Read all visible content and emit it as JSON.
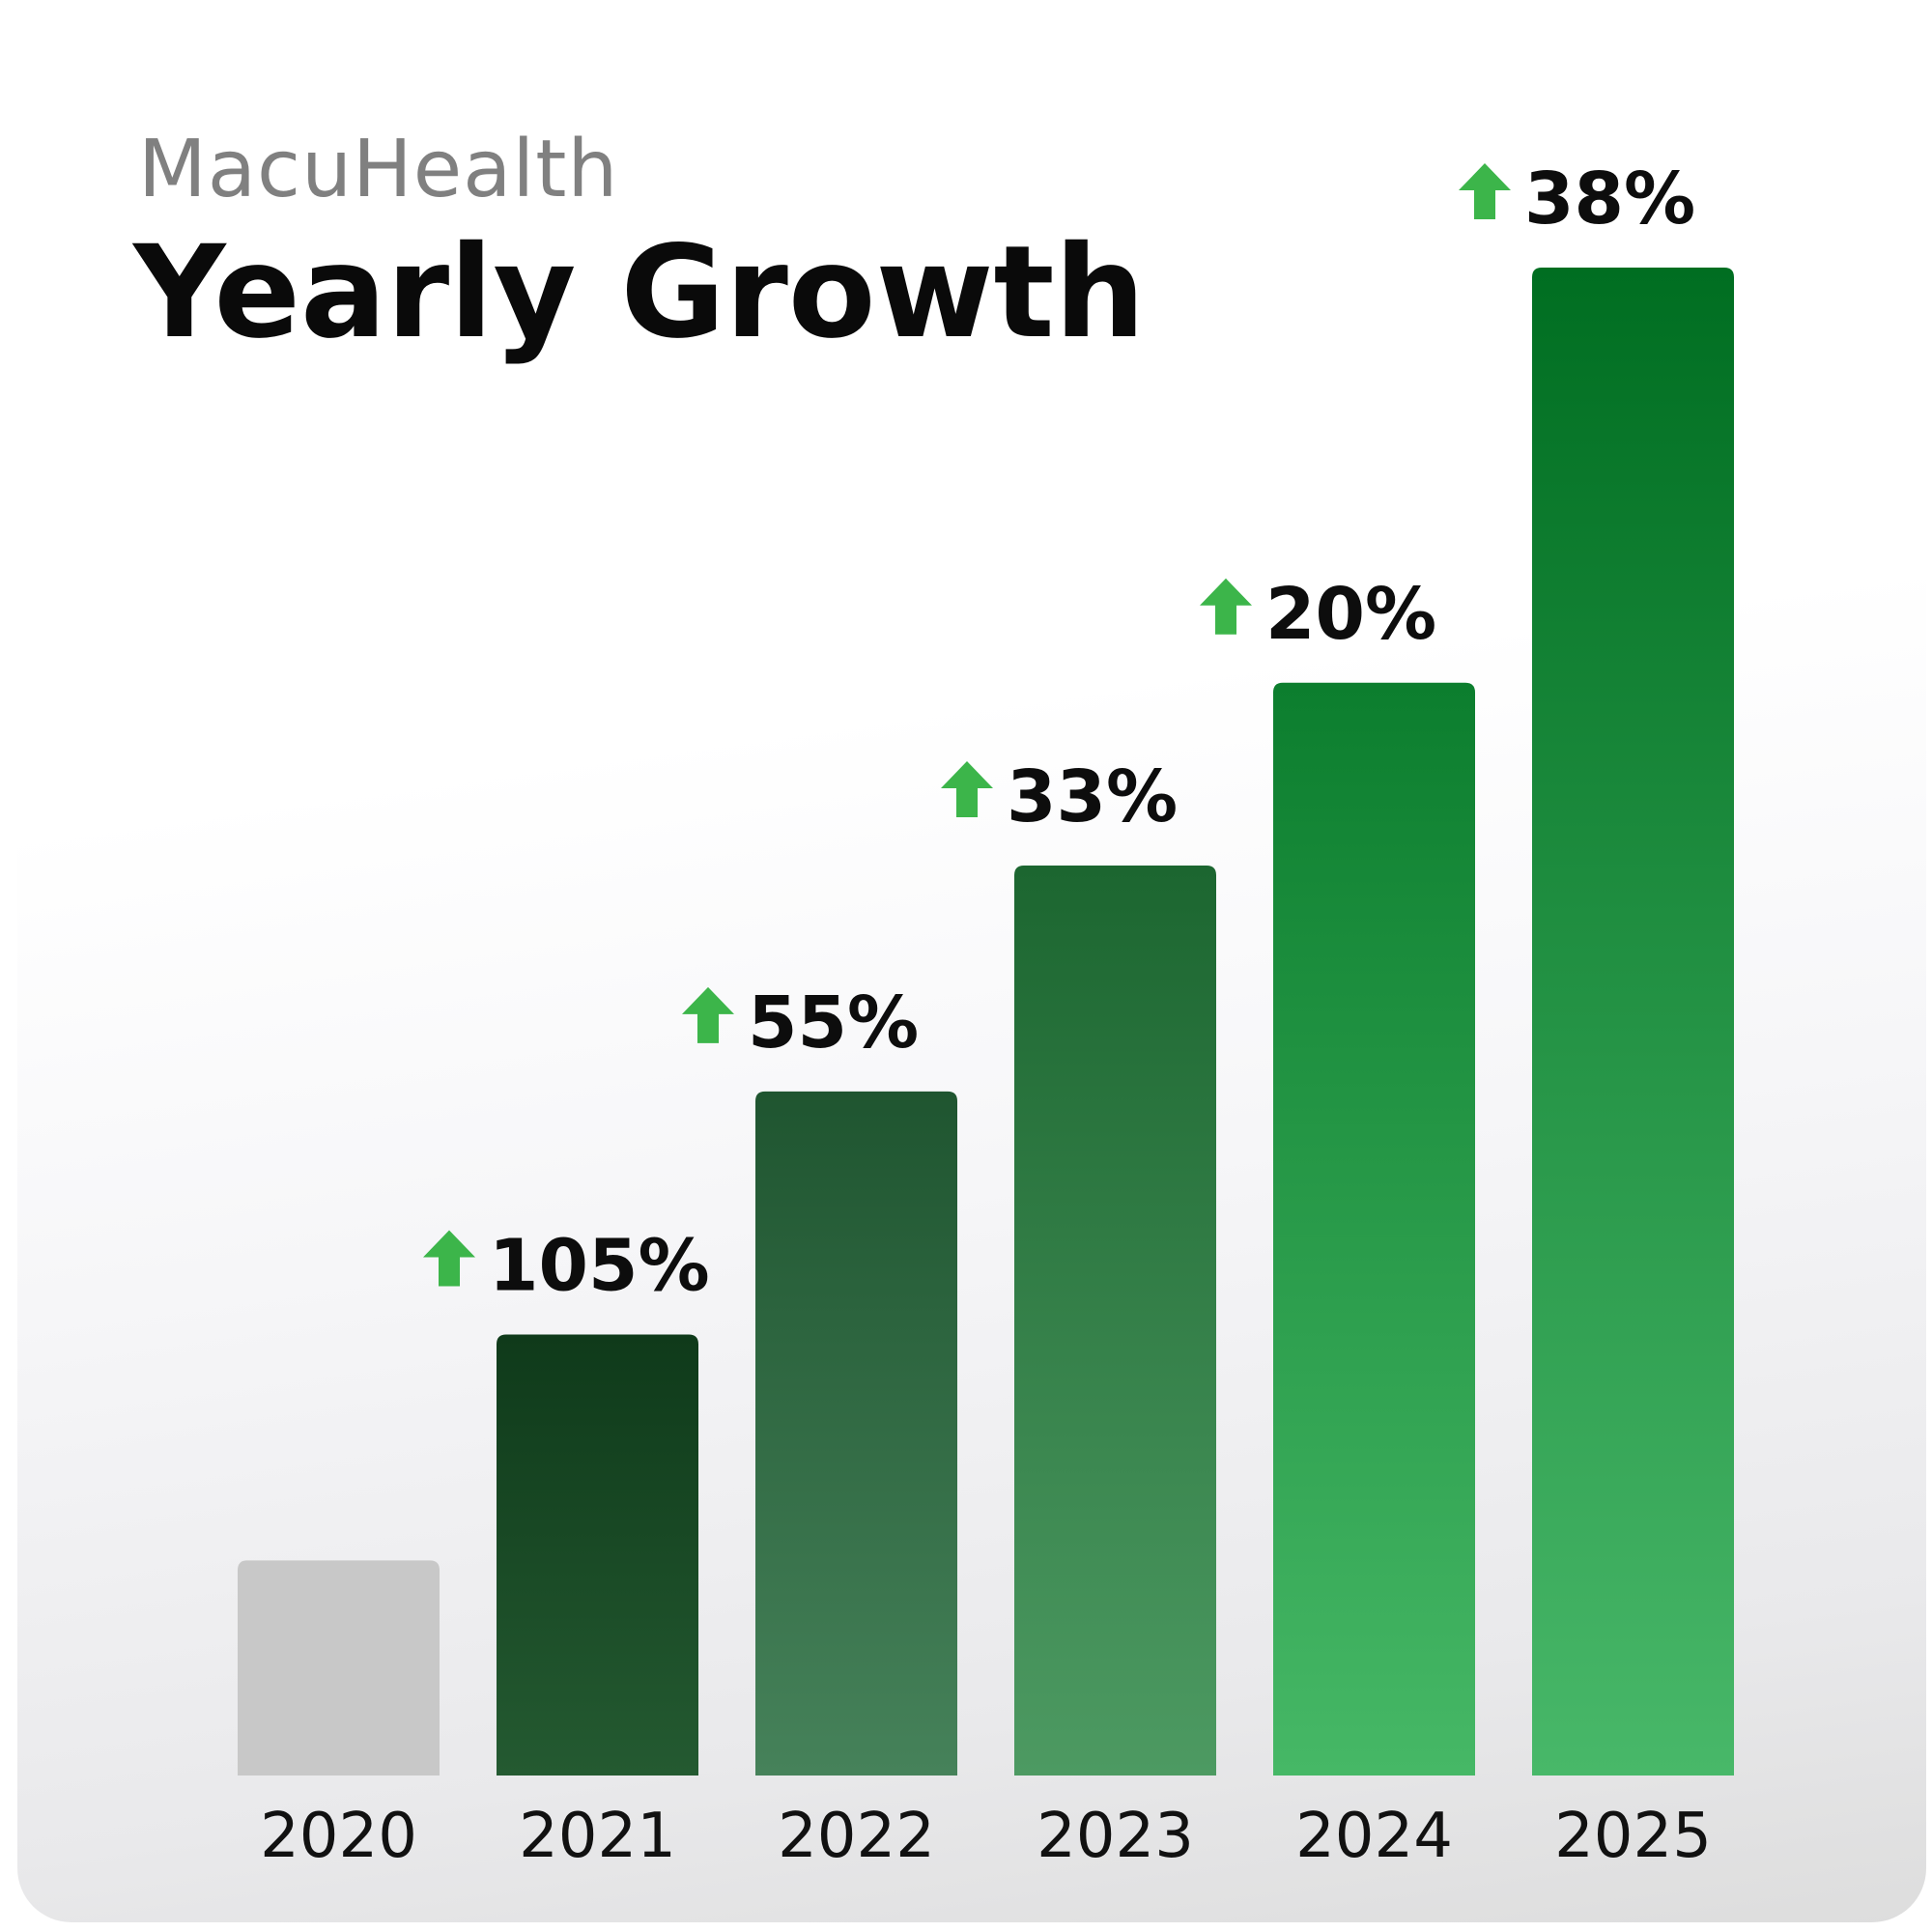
{
  "header": {
    "brand": "MacuHealth",
    "title": "Yearly Growth"
  },
  "chart_data": {
    "type": "bar",
    "title": "Yearly Growth",
    "xlabel": "",
    "ylabel": "",
    "categories": [
      "2020",
      "2021",
      "2022",
      "2023",
      "2024",
      "2025"
    ],
    "values": [
      1.0,
      2.05,
      3.18,
      4.23,
      5.08,
      7.01
    ],
    "growth_labels": [
      "",
      "105%",
      "55%",
      "33%",
      "20%",
      "38%"
    ],
    "ylim": [
      0,
      7.01
    ],
    "grid": false,
    "colors": {
      "baseline_bar": "#c8c8c8",
      "bar_top": [
        "#0f3a1a",
        "#1f5530",
        "#1c6630",
        "#0c7e2e",
        "#006e21"
      ],
      "bar_bottom": [
        "#245a31",
        "#46825a",
        "#4d9a62",
        "#46b866",
        "#48b869"
      ],
      "arrow": "#3cb54a"
    }
  }
}
